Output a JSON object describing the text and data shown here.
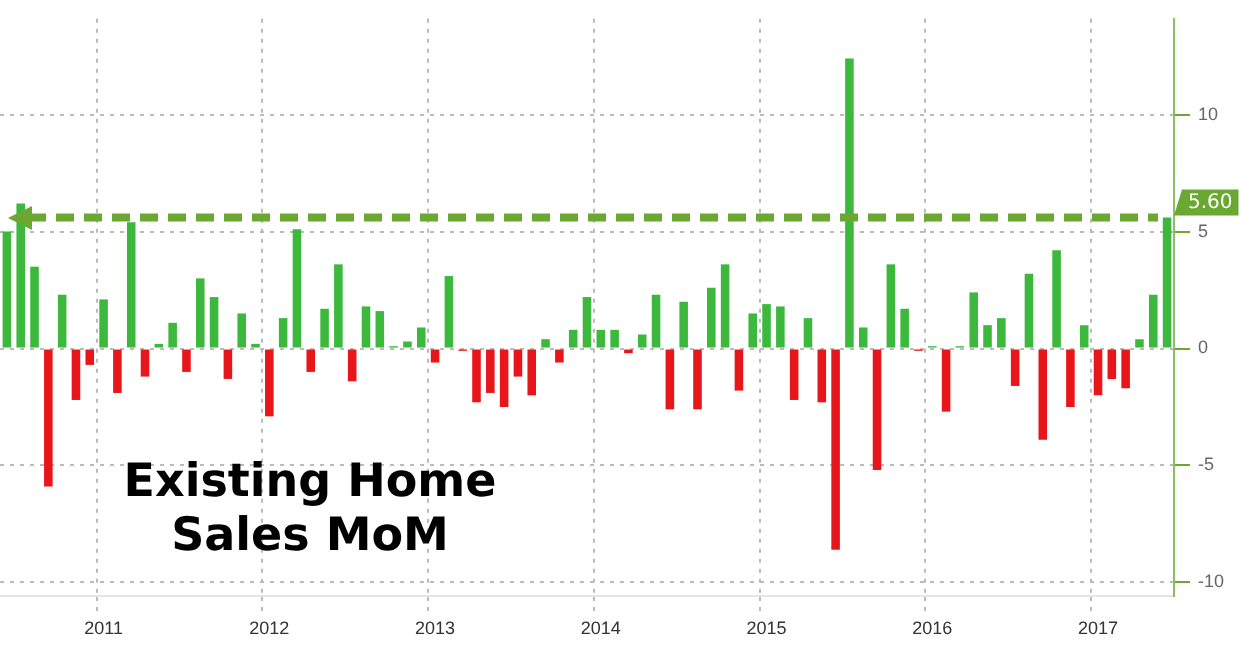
{
  "chart_data": {
    "type": "bar",
    "title": "Existing Home Sales MoM",
    "categories": [
      null,
      null,
      null,
      null,
      null,
      null,
      null,
      "2011",
      null,
      null,
      null,
      null,
      null,
      null,
      null,
      null,
      null,
      null,
      null,
      "2012",
      null,
      null,
      null,
      null,
      null,
      null,
      null,
      null,
      null,
      null,
      null,
      "2013",
      null,
      null,
      null,
      null,
      null,
      null,
      null,
      null,
      null,
      null,
      null,
      "2014",
      null,
      null,
      null,
      null,
      null,
      null,
      null,
      null,
      null,
      null,
      null,
      "2015",
      null,
      null,
      null,
      null,
      null,
      null,
      null,
      null,
      null,
      null,
      null,
      "2016",
      null,
      null,
      null,
      null,
      null,
      null,
      null,
      null,
      null,
      null,
      null,
      "2017",
      null,
      null,
      null,
      null,
      null
    ],
    "values": [
      5.0,
      6.2,
      3.5,
      -5.9,
      2.3,
      -2.2,
      -0.7,
      2.1,
      -1.9,
      5.4,
      -1.2,
      0.2,
      1.1,
      -1.0,
      3.0,
      2.2,
      -1.3,
      1.5,
      0.2,
      -2.9,
      1.3,
      5.1,
      -1.0,
      1.7,
      3.6,
      -1.4,
      1.8,
      1.6,
      0.1,
      0.3,
      0.9,
      -0.6,
      3.1,
      -0.1,
      -2.3,
      -1.9,
      -2.5,
      -1.2,
      -2.0,
      0.4,
      -0.6,
      0.8,
      2.2,
      0.8,
      0.8,
      -0.2,
      0.6,
      2.3,
      -2.6,
      2.0,
      -2.6,
      2.6,
      3.6,
      -1.8,
      1.5,
      1.9,
      1.8,
      -2.2,
      1.3,
      -2.3,
      -8.6,
      12.4,
      0.9,
      -5.2,
      3.6,
      1.7,
      -0.1,
      0.1,
      -2.7,
      0.1,
      2.4,
      1.0,
      1.3,
      -1.6,
      3.2,
      -3.9,
      4.2,
      -2.5,
      1.0,
      -2.0,
      -1.3,
      -1.7,
      0.4,
      2.3,
      5.6
    ],
    "colors": [
      "#3cb83c",
      "#3cb83c",
      "#3cb83c",
      "#e8161b",
      "#3cb83c",
      "#e8161b",
      "#e8161b",
      "#3cb83c",
      "#e8161b",
      "#3cb83c",
      "#e8161b",
      "#3cb83c",
      "#3cb83c",
      "#e8161b",
      "#3cb83c",
      "#3cb83c",
      "#e8161b",
      "#3cb83c",
      "#3cb83c",
      "#e8161b",
      "#3cb83c",
      "#3cb83c",
      "#e8161b",
      "#3cb83c",
      "#3cb83c",
      "#e8161b",
      "#3cb83c",
      "#3cb83c",
      "#3cb83c",
      "#3cb83c",
      "#3cb83c",
      "#e8161b",
      "#3cb83c",
      "#e8161b",
      "#e8161b",
      "#e8161b",
      "#e8161b",
      "#e8161b",
      "#e8161b",
      "#3cb83c",
      "#e8161b",
      "#3cb83c",
      "#3cb83c",
      "#3cb83c",
      "#3cb83c",
      "#e8161b",
      "#3cb83c",
      "#3cb83c",
      "#e8161b",
      "#3cb83c",
      "#e8161b",
      "#3cb83c",
      "#3cb83c",
      "#e8161b",
      "#3cb83c",
      "#3cb83c",
      "#3cb83c",
      "#e8161b",
      "#3cb83c",
      "#e8161b",
      "#e8161b",
      "#3cb83c",
      "#3cb83c",
      "#e8161b",
      "#3cb83c",
      "#3cb83c",
      "#e8161b",
      "#3cb83c",
      "#e8161b",
      "#3cb83c",
      "#3cb83c",
      "#3cb83c",
      "#3cb83c",
      "#e8161b",
      "#3cb83c",
      "#e8161b",
      "#3cb83c",
      "#e8161b",
      "#3cb83c",
      "#e8161b",
      "#e8161b",
      "#e8161b",
      "#3cb83c",
      "#3cb83c",
      "#3cb83c"
    ],
    "ylim": [
      -10.6,
      14.1
    ],
    "yticks": [
      -10,
      -5,
      0,
      5,
      10
    ],
    "grid": true,
    "ref_lines": [
      {
        "axis": "y",
        "value": 5.6,
        "label": "5.60",
        "color": "#6aa832",
        "line_style": "dashed"
      }
    ]
  }
}
